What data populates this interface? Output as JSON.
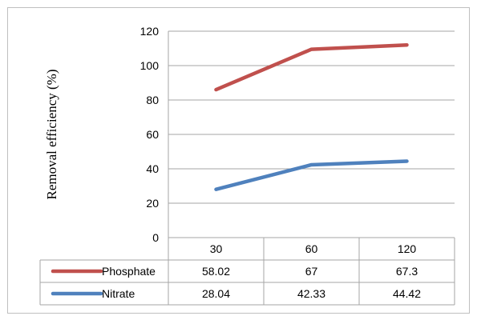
{
  "chart_data": {
    "type": "line",
    "title": "",
    "xlabel": "",
    "ylabel": "Removal efficiency (%)",
    "categories": [
      "30",
      "60",
      "120"
    ],
    "ylim": [
      0,
      120
    ],
    "yticks": [
      0,
      20,
      40,
      60,
      80,
      100,
      120
    ],
    "grid": true,
    "legend": "data-table",
    "series": [
      {
        "name": "Phosphate",
        "color": "#c0504d",
        "values": [
          86,
          109.5,
          112
        ],
        "table_values": [
          "58.02",
          "67",
          "67.3"
        ]
      },
      {
        "name": "Nitrate",
        "color": "#4f81bd",
        "values": [
          28.04,
          42.33,
          44.42
        ],
        "table_values": [
          "28.04",
          "42.33",
          "44.42"
        ]
      }
    ]
  }
}
